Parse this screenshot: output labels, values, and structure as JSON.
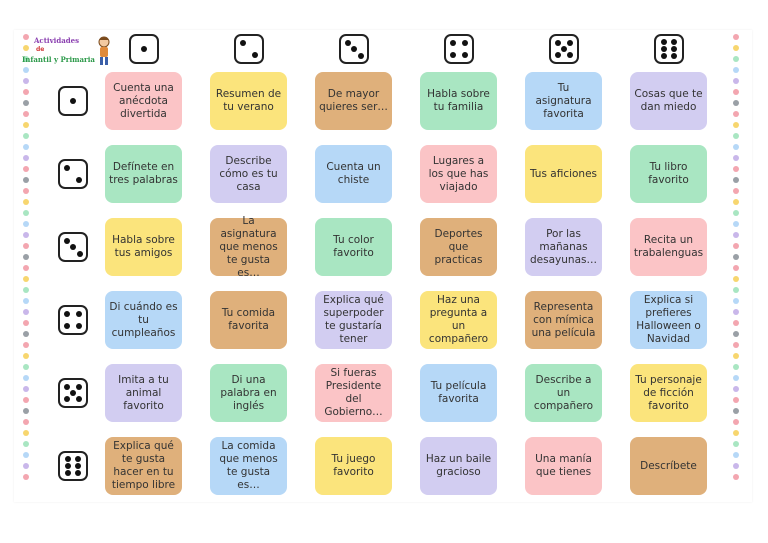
{
  "logo": {
    "line1": "Actividades",
    "line2": "de",
    "line3": "Infantil y Primaria"
  },
  "header_dice": [
    1,
    2,
    3,
    4,
    5,
    6
  ],
  "rows": [
    {
      "die": 1,
      "cells": [
        {
          "text": "Cuenta una anécdota divertida",
          "color": "pink"
        },
        {
          "text": "Resumen de tu verano",
          "color": "yellow"
        },
        {
          "text": "De mayor quieres ser…",
          "color": "tan"
        },
        {
          "text": "Habla sobre tu familia",
          "color": "green"
        },
        {
          "text": "Tu asignatura favorita",
          "color": "blue"
        },
        {
          "text": "Cosas que te dan miedo",
          "color": "lav"
        }
      ]
    },
    {
      "die": 2,
      "cells": [
        {
          "text": "Defínete en tres palabras",
          "color": "green"
        },
        {
          "text": "Describe cómo es tu casa",
          "color": "lav"
        },
        {
          "text": "Cuenta un chiste",
          "color": "blue"
        },
        {
          "text": "Lugares a los que has viajado",
          "color": "pink"
        },
        {
          "text": "Tus aficiones",
          "color": "yellow"
        },
        {
          "text": "Tu libro favorito",
          "color": "green"
        }
      ]
    },
    {
      "die": 3,
      "cells": [
        {
          "text": "Habla sobre tus amigos",
          "color": "yellow"
        },
        {
          "text": "La asignatura que menos te gusta es…",
          "color": "tan"
        },
        {
          "text": "Tu color favorito",
          "color": "green"
        },
        {
          "text": "Deportes que practicas",
          "color": "tan"
        },
        {
          "text": "Por las mañanas desayunas…",
          "color": "lav"
        },
        {
          "text": "Recita un trabalenguas",
          "color": "pink"
        }
      ]
    },
    {
      "die": 4,
      "cells": [
        {
          "text": "Di cuándo es tu cumpleaños",
          "color": "blue"
        },
        {
          "text": "Tu comida favorita",
          "color": "tan"
        },
        {
          "text": "Explica qué superpoder te gustaría tener",
          "color": "lav"
        },
        {
          "text": "Haz una pregunta a un compañero",
          "color": "yellow"
        },
        {
          "text": "Representa con mímica una película",
          "color": "tan"
        },
        {
          "text": "Explica si prefieres Halloween o Navidad",
          "color": "blue"
        }
      ]
    },
    {
      "die": 5,
      "cells": [
        {
          "text": "Imita a tu animal favorito",
          "color": "lav"
        },
        {
          "text": "Di una palabra en inglés",
          "color": "green"
        },
        {
          "text": "Si fueras Presidente del Gobierno…",
          "color": "pink"
        },
        {
          "text": "Tu película favorita",
          "color": "blue"
        },
        {
          "text": "Describe a un compañero",
          "color": "green"
        },
        {
          "text": "Tu personaje de ficción favorito",
          "color": "yellow"
        }
      ]
    },
    {
      "die": 6,
      "cells": [
        {
          "text": "Explica qué te gusta hacer en tu tiempo libre",
          "color": "tan"
        },
        {
          "text": "La comida que menos te gusta es…",
          "color": "blue"
        },
        {
          "text": "Tu juego favorito",
          "color": "yellow"
        },
        {
          "text": "Haz un baile gracioso",
          "color": "lav"
        },
        {
          "text": "Una manía que tienes",
          "color": "pink"
        },
        {
          "text": "Descríbete",
          "color": "tan"
        }
      ]
    }
  ],
  "palette": {
    "pink": "#fbc4c6",
    "yellow": "#fbe47c",
    "tan": "#dfb07b",
    "green": "#a9e6c2",
    "blue": "#b6d8f7",
    "lav": "#d2cdf1"
  }
}
